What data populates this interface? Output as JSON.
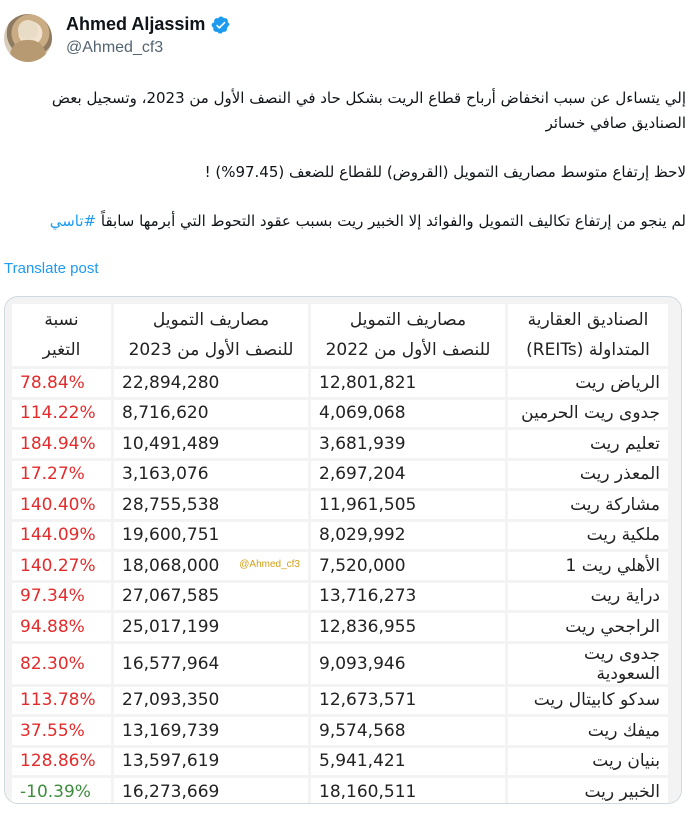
{
  "author": {
    "name": "Ahmed Aljassim",
    "handle": "@Ahmed_cf3"
  },
  "tweet": {
    "paragraph1_line1": "إلي يتساءل عن سبب انخفاض أرباح قطاع الريت بشكل حاد في النصف الأول من 2023، وتسجيل بعض",
    "paragraph1_line2": "الصناديق صافي خسائر",
    "paragraph2": "لاحظ إرتفاع متوسط مصاريف التمويل (القروض) للقطاع للضعف (97.45%) !",
    "paragraph3": "لم ينجو من إرتفاع تكاليف التمويل والفوائد إلا الخبير ريت بسبب عقود التحوط التي أبرمها سابقاً",
    "hashtag": "#تاسي",
    "translate_label": "Translate post"
  },
  "table": {
    "headers": {
      "fund_line1": "الصناديق العقارية",
      "fund_line2": "المتداولة (REITs)",
      "h2022_line1": "مصاريف التمويل",
      "h2022_line2": "للنصف الأول من 2022",
      "h2023_line1": "مصاريف التمويل",
      "h2023_line2": "للنصف الأول من 2023",
      "change_line1": "نسبة",
      "change_line2": "التغير"
    },
    "watermark": "@Ahmed_cf3",
    "rows": [
      {
        "fund": "الرياض ريت",
        "h2022": "12,801,821",
        "h2023": "22,894,280",
        "change": "78.84%"
      },
      {
        "fund": "جدوى ريت الحرمين",
        "h2022": "4,069,068",
        "h2023": "8,716,620",
        "change": "114.22%"
      },
      {
        "fund": "تعليم ريت",
        "h2022": "3,681,939",
        "h2023": "10,491,489",
        "change": "184.94%"
      },
      {
        "fund": "المعذر ريت",
        "h2022": "2,697,204",
        "h2023": "3,163,076",
        "change": "17.27%"
      },
      {
        "fund": "مشاركة ريت",
        "h2022": "11,961,505",
        "h2023": "28,755,538",
        "change": "140.40%"
      },
      {
        "fund": "ملكية ريت",
        "h2022": "8,029,992",
        "h2023": "19,600,751",
        "change": "144.09%"
      },
      {
        "fund": "الأهلي ريت 1",
        "h2022": "7,520,000",
        "h2023": "18,068,000",
        "change": "140.27%"
      },
      {
        "fund": "دراية ريت",
        "h2022": "13,716,273",
        "h2023": "27,067,585",
        "change": "97.34%"
      },
      {
        "fund": "الراجحي ريت",
        "h2022": "12,836,955",
        "h2023": "25,017,199",
        "change": "94.88%"
      },
      {
        "fund": "جدوى ريت السعودية",
        "h2022": "9,093,946",
        "h2023": "16,577,964",
        "change": "82.30%"
      },
      {
        "fund": "سدكو كابيتال ريت",
        "h2022": "12,673,571",
        "h2023": "27,093,350",
        "change": "113.78%"
      },
      {
        "fund": "ميفك ريت",
        "h2022": "9,574,568",
        "h2023": "13,169,739",
        "change": "37.55%"
      },
      {
        "fund": "بنيان ريت",
        "h2022": "5,941,421",
        "h2023": "13,597,619",
        "change": "128.86%"
      },
      {
        "fund": "الخبير ريت",
        "h2022": "18,160,511",
        "h2023": "16,273,669",
        "change": "-10.39%"
      }
    ]
  },
  "colors": {
    "positive_change": "#e32b2b",
    "negative_change": "#3f8d3f",
    "link": "#1d9bf0",
    "verified_badge": "#1d9bf0"
  },
  "icons": {
    "verified": "verified-badge-icon"
  }
}
